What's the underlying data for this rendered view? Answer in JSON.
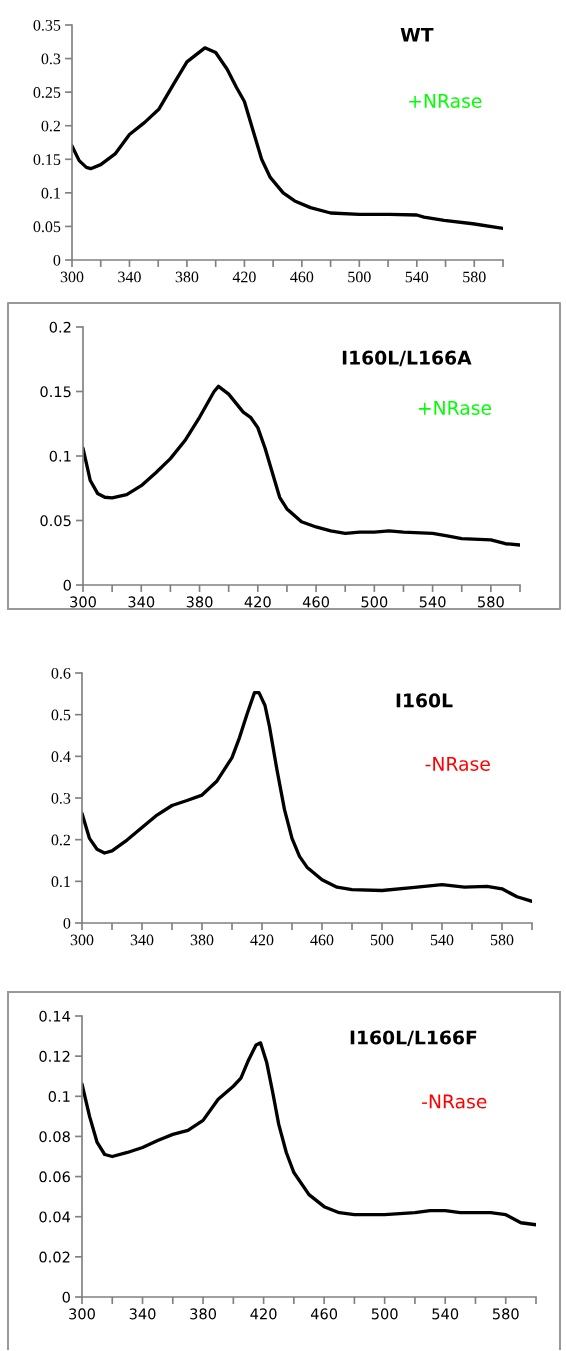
{
  "chart_data": [
    {
      "type": "line",
      "title": "WT",
      "annotations": [
        "+NRase"
      ],
      "xlim": [
        300,
        600
      ],
      "xticks": [
        300,
        {
          "value": 320,
          "label": null
        },
        340,
        {
          "value": 360,
          "label": null
        },
        380,
        {
          "value": 400,
          "label": null
        },
        420,
        {
          "value": 440,
          "label": null
        },
        460,
        {
          "value": 480,
          "label": null
        },
        500,
        {
          "value": 520,
          "label": null
        },
        540,
        {
          "value": 560,
          "label": null
        },
        580,
        {
          "value": 600,
          "label": null
        }
      ],
      "ylim": [
        0,
        0.35
      ],
      "yticks": [
        0,
        0.05,
        0.1,
        0.15,
        0.2,
        0.25,
        0.3,
        0.35
      ],
      "grid": false,
      "marker": "none",
      "line_style": "solid",
      "series": [
        {
          "color": "#000000",
          "x": [
            300,
            305,
            310,
            313,
            320,
            330,
            340,
            350.6,
            360.6,
            370.7,
            380,
            392.5,
            400,
            408,
            414.5,
            420,
            426,
            432,
            438,
            447,
            455,
            466,
            480,
            500,
            521,
            540,
            545,
            559,
            579,
            600
          ],
          "values": [
            0.17,
            0.148,
            0.138,
            0.136,
            0.142,
            0.158,
            0.187,
            0.205,
            0.225,
            0.262,
            0.295,
            0.316,
            0.309,
            0.284,
            0.257,
            0.236,
            0.193,
            0.15,
            0.123,
            0.1,
            0.088,
            0.078,
            0.07,
            0.068,
            0.068,
            0.067,
            0.064,
            0.059,
            0.054,
            0.047
          ]
        }
      ]
    },
    {
      "type": "line",
      "title": "I160L/L166A",
      "annotations": [
        "+NRase"
      ],
      "xlim": [
        300,
        600
      ],
      "xticks": [
        300,
        {
          "value": 320,
          "label": null
        },
        340,
        {
          "value": 360,
          "label": null
        },
        380,
        {
          "value": 400,
          "label": null
        },
        420,
        {
          "value": 440,
          "label": null
        },
        460,
        {
          "value": 480,
          "label": null
        },
        500,
        {
          "value": 520,
          "label": null
        },
        540,
        {
          "value": 560,
          "label": null
        },
        580,
        {
          "value": 600,
          "label": null
        }
      ],
      "ylim": [
        0,
        0.2
      ],
      "yticks": [
        0,
        0.05,
        0.1,
        0.15,
        0.2
      ],
      "grid": false,
      "marker": "none",
      "line_style": "solid",
      "series": [
        {
          "color": "#000000",
          "x": [
            300,
            305,
            310,
            315,
            320,
            330,
            340,
            350,
            360,
            370,
            380,
            390,
            393,
            400,
            410,
            415,
            420,
            425,
            430,
            435,
            440,
            450,
            460,
            470,
            480,
            490,
            500,
            510,
            520,
            540,
            550,
            560,
            580,
            590,
            600
          ],
          "values": [
            0.106,
            0.081,
            0.071,
            0.068,
            0.0676,
            0.07,
            0.077,
            0.087,
            0.098,
            0.112,
            0.13,
            0.15,
            0.154,
            0.148,
            0.134,
            0.13,
            0.122,
            0.106,
            0.087,
            0.068,
            0.059,
            0.049,
            0.045,
            0.042,
            0.04,
            0.041,
            0.041,
            0.042,
            0.041,
            0.04,
            0.038,
            0.036,
            0.035,
            0.032,
            0.031
          ]
        }
      ]
    },
    {
      "type": "line",
      "title": "I160L",
      "annotations": [
        "-NRase"
      ],
      "xlim": [
        300,
        600
      ],
      "xticks": [
        300,
        {
          "value": 320,
          "label": null
        },
        340,
        {
          "value": 360,
          "label": null
        },
        380,
        {
          "value": 400,
          "label": null
        },
        420,
        {
          "value": 440,
          "label": null
        },
        460,
        {
          "value": 480,
          "label": null
        },
        500,
        {
          "value": 520,
          "label": null
        },
        540,
        {
          "value": 560,
          "label": null
        },
        580,
        {
          "value": 600,
          "label": null
        }
      ],
      "ylim": [
        0,
        0.6
      ],
      "yticks": [
        0,
        0.1,
        0.2,
        0.3,
        0.4,
        0.5,
        0.6
      ],
      "grid": false,
      "marker": "none",
      "line_style": "solid",
      "series": [
        {
          "color": "#000000",
          "x": [
            300,
            305,
            310,
            315,
            320,
            330,
            340,
            350,
            360,
            370,
            380,
            390,
            400,
            405,
            410,
            415,
            418,
            422,
            425,
            430,
            435,
            440,
            445,
            450,
            460,
            470,
            480,
            500,
            520,
            540,
            555,
            570,
            580,
            590,
            600
          ],
          "values": [
            0.263,
            0.203,
            0.177,
            0.168,
            0.173,
            0.199,
            0.229,
            0.259,
            0.282,
            0.294,
            0.307,
            0.341,
            0.397,
            0.445,
            0.501,
            0.553,
            0.553,
            0.522,
            0.471,
            0.367,
            0.272,
            0.203,
            0.16,
            0.134,
            0.104,
            0.086,
            0.08,
            0.078,
            0.085,
            0.092,
            0.086,
            0.088,
            0.082,
            0.063,
            0.052
          ]
        }
      ]
    },
    {
      "type": "line",
      "title": "I160L/L166F",
      "annotations": [
        "-NRase"
      ],
      "xlim": [
        300,
        600
      ],
      "xticks": [
        300,
        {
          "value": 320,
          "label": null
        },
        340,
        {
          "value": 360,
          "label": null
        },
        380,
        {
          "value": 400,
          "label": null
        },
        420,
        {
          "value": 440,
          "label": null
        },
        460,
        {
          "value": 480,
          "label": null
        },
        500,
        {
          "value": 520,
          "label": null
        },
        540,
        {
          "value": 560,
          "label": null
        },
        580,
        {
          "value": 600,
          "label": null
        }
      ],
      "ylim": [
        0,
        0.14
      ],
      "yticks": [
        0,
        0.02,
        0.04,
        0.06,
        0.08,
        0.1,
        0.12,
        0.14
      ],
      "grid": false,
      "marker": "none",
      "line_style": "solid",
      "series": [
        {
          "color": "#000000",
          "x": [
            300,
            305,
            310,
            315,
            320,
            330,
            340,
            350,
            360,
            370,
            380,
            390,
            400,
            405,
            410,
            415,
            418,
            422,
            426,
            430,
            435,
            440,
            450,
            460,
            470,
            480,
            500,
            520,
            530,
            540,
            550,
            570,
            580,
            590,
            600
          ],
          "values": [
            0.106,
            0.09,
            0.077,
            0.071,
            0.07,
            0.072,
            0.0745,
            0.078,
            0.081,
            0.083,
            0.088,
            0.0985,
            0.105,
            0.109,
            0.118,
            0.1256,
            0.1266,
            0.117,
            0.102,
            0.086,
            0.072,
            0.062,
            0.051,
            0.045,
            0.042,
            0.041,
            0.041,
            0.042,
            0.043,
            0.043,
            0.042,
            0.042,
            0.041,
            0.037,
            0.036
          ]
        }
      ]
    }
  ]
}
